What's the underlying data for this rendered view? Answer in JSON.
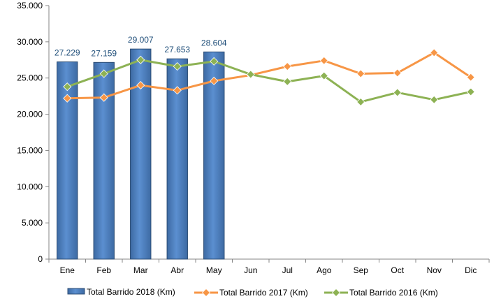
{
  "chart_data": {
    "type": "bar",
    "title": "",
    "xlabel": "",
    "ylabel": "",
    "categories": [
      "Ene",
      "Feb",
      "Mar",
      "Abr",
      "May",
      "Jun",
      "Jul",
      "Ago",
      "Sep",
      "Oct",
      "Nov",
      "Dic"
    ],
    "y_ticks": [
      "0",
      "5.000",
      "10.000",
      "15.000",
      "20.000",
      "25.000",
      "30.000",
      "35.000"
    ],
    "ylim": [
      0,
      35000
    ],
    "grid": false,
    "legend_position": "bottom",
    "series": [
      {
        "name": "Total Barrido 2018 (Km)",
        "type": "bar",
        "color": "#4f81bd",
        "values": [
          27229,
          27159,
          29007,
          27653,
          28604,
          null,
          null,
          null,
          null,
          null,
          null,
          null
        ],
        "data_labels": [
          "27.229",
          "27.159",
          "29.007",
          "27.653",
          "28.604"
        ]
      },
      {
        "name": "Total Barrido 2017 (Km)",
        "type": "line",
        "marker": "diamond",
        "color": "#f79646",
        "values": [
          22200,
          22300,
          24000,
          23300,
          24600,
          25400,
          26600,
          27400,
          25600,
          25700,
          28500,
          25100
        ]
      },
      {
        "name": "Total Barrido 2016 (Km)",
        "type": "line",
        "marker": "diamond",
        "color": "#8db254",
        "values": [
          23800,
          25600,
          27500,
          26600,
          27300,
          25500,
          24500,
          25300,
          21700,
          23000,
          22000,
          23100
        ]
      }
    ]
  }
}
